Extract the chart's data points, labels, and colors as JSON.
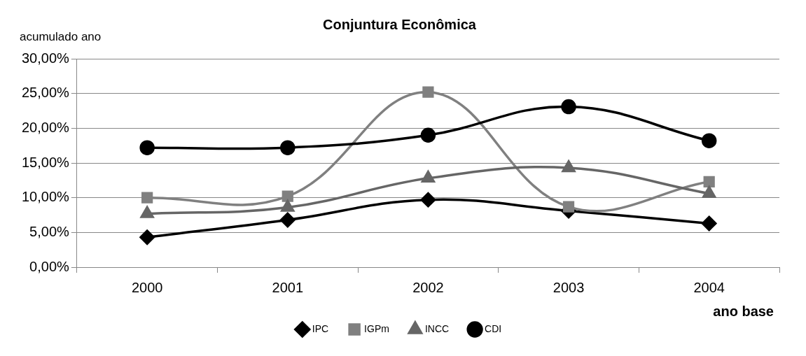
{
  "chart_data": {
    "type": "line",
    "title": "Conjuntura Econômica",
    "ylabel": "acumulado ano",
    "xlabel": "ano base",
    "categories": [
      "2000",
      "2001",
      "2002",
      "2003",
      "2004"
    ],
    "series": [
      {
        "name": "IPC",
        "color": "#000000",
        "marker": "diamond",
        "values": [
          4.3,
          6.8,
          9.7,
          8.1,
          6.3
        ]
      },
      {
        "name": "IGPm",
        "color": "#808080",
        "marker": "square",
        "values": [
          10.0,
          10.2,
          25.2,
          8.7,
          12.3
        ]
      },
      {
        "name": "INCC",
        "color": "#666666",
        "marker": "triangle",
        "values": [
          7.7,
          8.6,
          12.8,
          14.3,
          10.6
        ]
      },
      {
        "name": "CDI",
        "color": "#000000",
        "marker": "circle",
        "values": [
          17.2,
          17.2,
          19.0,
          23.1,
          18.2
        ]
      }
    ],
    "ylim": [
      0,
      30
    ],
    "yticks": [
      {
        "value": 0,
        "label": "0,00%"
      },
      {
        "value": 5,
        "label": "5,00%"
      },
      {
        "value": 10,
        "label": "10,00%"
      },
      {
        "value": 15,
        "label": "15,00%"
      },
      {
        "value": 20,
        "label": "20,00%"
      },
      {
        "value": 25,
        "label": "25,00%"
      },
      {
        "value": 30,
        "label": "30,00%"
      }
    ],
    "grid": "y",
    "legend": "bottom"
  }
}
